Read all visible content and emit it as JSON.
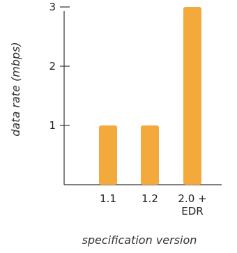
{
  "chart_data": {
    "type": "bar",
    "categories": [
      "1.1",
      "1.2",
      "2.0 +\nEDR"
    ],
    "values": [
      1,
      1,
      3
    ],
    "title": "",
    "xlabel": "specification version",
    "ylabel": "data rate (mbps)",
    "ylim": [
      0,
      3
    ],
    "yticks": [
      1,
      2,
      3
    ],
    "grid": false,
    "legend": "none"
  },
  "colors": {
    "bar": "#F3A93C",
    "axis": "#333333",
    "text": "#222222"
  }
}
